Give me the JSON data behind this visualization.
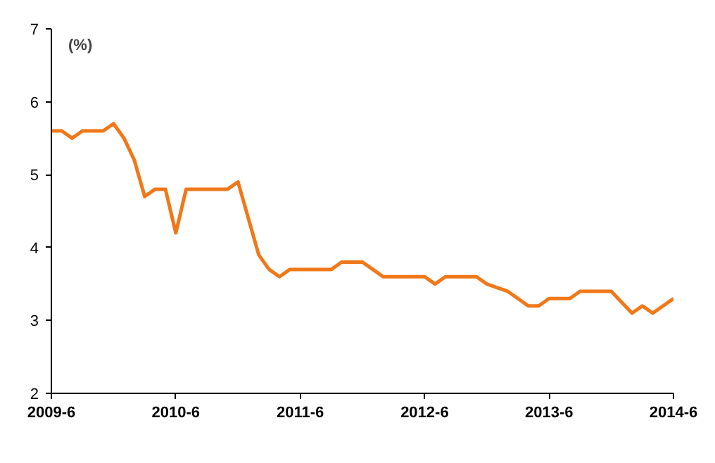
{
  "chart_data": {
    "type": "line",
    "ylabel": "(%)",
    "x": [
      "2009-06",
      "2009-07",
      "2009-08",
      "2009-09",
      "2009-10",
      "2009-11",
      "2009-12",
      "2010-01",
      "2010-02",
      "2010-03",
      "2010-04",
      "2010-05",
      "2010-06",
      "2010-07",
      "2010-08",
      "2010-09",
      "2010-10",
      "2010-11",
      "2010-12",
      "2011-01",
      "2011-02",
      "2011-03",
      "2011-04",
      "2011-05",
      "2011-06",
      "2011-07",
      "2011-08",
      "2011-09",
      "2011-10",
      "2011-11",
      "2011-12",
      "2012-01",
      "2012-02",
      "2012-03",
      "2012-04",
      "2012-05",
      "2012-06",
      "2012-07",
      "2012-08",
      "2012-09",
      "2012-10",
      "2012-11",
      "2012-12",
      "2013-01",
      "2013-02",
      "2013-03",
      "2013-04",
      "2013-05",
      "2013-06",
      "2013-07",
      "2013-08",
      "2013-09",
      "2013-10",
      "2013-11",
      "2013-12",
      "2014-01",
      "2014-02",
      "2014-03",
      "2014-04",
      "2014-05",
      "2014-06"
    ],
    "series": [
      {
        "color": "#f07818",
        "values": [
          5.6,
          5.6,
          5.5,
          5.6,
          5.6,
          5.6,
          5.7,
          5.5,
          5.2,
          4.7,
          4.8,
          4.8,
          4.2,
          4.8,
          4.8,
          4.8,
          4.8,
          4.8,
          4.9,
          4.4,
          3.9,
          3.7,
          3.6,
          3.7,
          3.7,
          3.7,
          3.7,
          3.7,
          3.8,
          3.8,
          3.8,
          3.7,
          3.6,
          3.6,
          3.6,
          3.6,
          3.6,
          3.5,
          3.6,
          3.6,
          3.6,
          3.6,
          3.5,
          3.45,
          3.4,
          3.3,
          3.2,
          3.2,
          3.3,
          3.3,
          3.3,
          3.4,
          3.4,
          3.4,
          3.4,
          3.25,
          3.1,
          3.2,
          3.1,
          3.2,
          3.3
        ]
      }
    ],
    "xlim": [
      "2009-06",
      "2014-06"
    ],
    "xticks": [
      {
        "value": "2009-06",
        "label": "2009-6"
      },
      {
        "value": "2010-06",
        "label": "2010-6"
      },
      {
        "value": "2011-06",
        "label": "2011-6"
      },
      {
        "value": "2012-06",
        "label": "2012-6"
      },
      {
        "value": "2013-06",
        "label": "2013-6"
      },
      {
        "value": "2014-06",
        "label": "2014-6"
      }
    ],
    "ylim": [
      2,
      7
    ],
    "yticks": [
      2,
      3,
      4,
      5,
      6,
      7
    ],
    "grid": false,
    "marker": "none",
    "line_style": "solid"
  }
}
